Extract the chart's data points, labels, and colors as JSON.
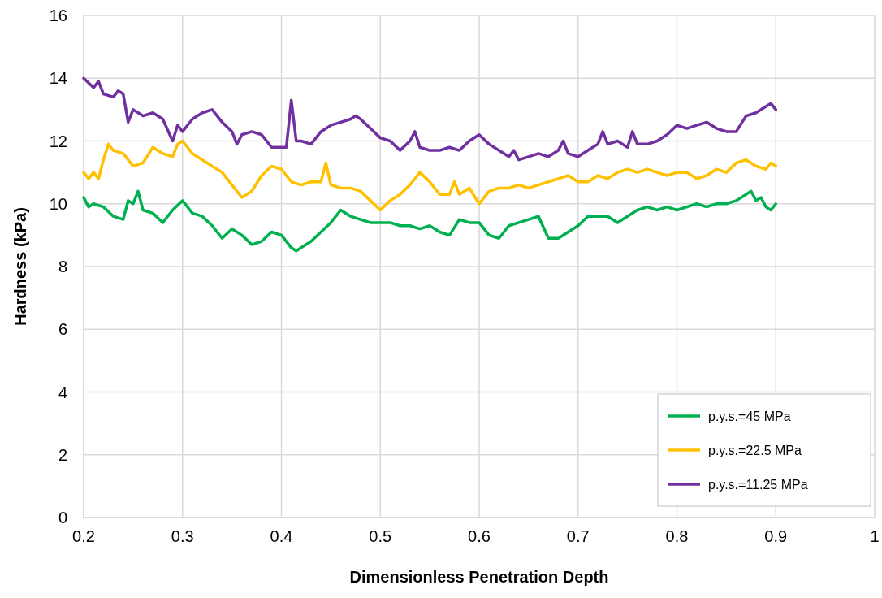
{
  "chart_data": {
    "type": "line",
    "xlabel": "Dimensionless Penetration Depth",
    "ylabel": "Hardness (kPa)",
    "xlim": [
      0.2,
      1
    ],
    "xticks": [
      0.2,
      0.3,
      0.4,
      0.5,
      0.6,
      0.7,
      0.8,
      0.9,
      1
    ],
    "ylim": [
      0,
      16
    ],
    "yticks": [
      0,
      2,
      4,
      6,
      8,
      10,
      12,
      14,
      16
    ],
    "grid": true,
    "legend": "bottom right",
    "marker": "none",
    "line_style": "solid",
    "series": [
      {
        "name": "p.y.s.=45 MPa",
        "color": "#00b050",
        "x": [
          0.2,
          0.205,
          0.21,
          0.22,
          0.23,
          0.24,
          0.245,
          0.25,
          0.255,
          0.26,
          0.27,
          0.28,
          0.29,
          0.3,
          0.31,
          0.32,
          0.33,
          0.34,
          0.35,
          0.36,
          0.37,
          0.38,
          0.39,
          0.4,
          0.41,
          0.415,
          0.42,
          0.43,
          0.44,
          0.45,
          0.46,
          0.47,
          0.48,
          0.49,
          0.5,
          0.51,
          0.52,
          0.53,
          0.54,
          0.55,
          0.56,
          0.57,
          0.58,
          0.59,
          0.6,
          0.61,
          0.62,
          0.63,
          0.64,
          0.65,
          0.66,
          0.67,
          0.68,
          0.69,
          0.7,
          0.71,
          0.72,
          0.73,
          0.74,
          0.75,
          0.76,
          0.77,
          0.78,
          0.79,
          0.8,
          0.81,
          0.82,
          0.83,
          0.84,
          0.85,
          0.86,
          0.87,
          0.875,
          0.88,
          0.885,
          0.89,
          0.895,
          0.9
        ],
        "values": [
          10.2,
          9.9,
          10.0,
          9.9,
          9.6,
          9.5,
          10.1,
          10.0,
          10.4,
          9.8,
          9.7,
          9.4,
          9.8,
          10.1,
          9.7,
          9.6,
          9.3,
          8.9,
          9.2,
          9.0,
          8.7,
          8.8,
          9.1,
          9.0,
          8.6,
          8.5,
          8.6,
          8.8,
          9.1,
          9.4,
          9.8,
          9.6,
          9.5,
          9.4,
          9.4,
          9.4,
          9.3,
          9.3,
          9.2,
          9.3,
          9.1,
          9.0,
          9.5,
          9.4,
          9.4,
          9.0,
          8.9,
          9.3,
          9.4,
          9.5,
          9.6,
          8.9,
          8.9,
          9.1,
          9.3,
          9.6,
          9.6,
          9.6,
          9.4,
          9.6,
          9.8,
          9.9,
          9.8,
          9.9,
          9.8,
          9.9,
          10.0,
          9.9,
          10.0,
          10.0,
          10.1,
          10.3,
          10.4,
          10.1,
          10.2,
          9.9,
          9.8,
          10.0
        ]
      },
      {
        "name": "p.y.s.=22.5 MPa",
        "color": "#ffc000",
        "x": [
          0.2,
          0.205,
          0.21,
          0.215,
          0.22,
          0.225,
          0.23,
          0.24,
          0.25,
          0.26,
          0.27,
          0.28,
          0.29,
          0.295,
          0.3,
          0.31,
          0.32,
          0.33,
          0.34,
          0.35,
          0.36,
          0.37,
          0.38,
          0.39,
          0.4,
          0.41,
          0.42,
          0.43,
          0.44,
          0.445,
          0.45,
          0.46,
          0.47,
          0.48,
          0.49,
          0.5,
          0.51,
          0.52,
          0.53,
          0.54,
          0.55,
          0.56,
          0.57,
          0.575,
          0.58,
          0.59,
          0.6,
          0.61,
          0.62,
          0.63,
          0.64,
          0.65,
          0.66,
          0.67,
          0.68,
          0.69,
          0.7,
          0.71,
          0.72,
          0.73,
          0.74,
          0.75,
          0.76,
          0.77,
          0.78,
          0.79,
          0.8,
          0.81,
          0.82,
          0.83,
          0.84,
          0.85,
          0.86,
          0.87,
          0.88,
          0.89,
          0.895,
          0.9
        ],
        "values": [
          11.0,
          10.8,
          11.0,
          10.8,
          11.4,
          11.9,
          11.7,
          11.6,
          11.2,
          11.3,
          11.8,
          11.6,
          11.5,
          11.9,
          12.0,
          11.6,
          11.4,
          11.2,
          11.0,
          10.6,
          10.2,
          10.4,
          10.9,
          11.2,
          11.1,
          10.7,
          10.6,
          10.7,
          10.7,
          11.3,
          10.6,
          10.5,
          10.5,
          10.4,
          10.1,
          9.8,
          10.1,
          10.3,
          10.6,
          11.0,
          10.7,
          10.3,
          10.3,
          10.7,
          10.3,
          10.5,
          10.0,
          10.4,
          10.5,
          10.5,
          10.6,
          10.5,
          10.6,
          10.7,
          10.8,
          10.9,
          10.7,
          10.7,
          10.9,
          10.8,
          11.0,
          11.1,
          11.0,
          11.1,
          11.0,
          10.9,
          11.0,
          11.0,
          10.8,
          10.9,
          11.1,
          11.0,
          11.3,
          11.4,
          11.2,
          11.1,
          11.3,
          11.2
        ]
      },
      {
        "name": "p.y.s.=11.25 MPa",
        "color": "#7030a0",
        "x": [
          0.2,
          0.21,
          0.215,
          0.22,
          0.23,
          0.235,
          0.24,
          0.245,
          0.25,
          0.26,
          0.27,
          0.28,
          0.29,
          0.295,
          0.3,
          0.31,
          0.32,
          0.33,
          0.34,
          0.35,
          0.355,
          0.36,
          0.37,
          0.38,
          0.39,
          0.4,
          0.405,
          0.41,
          0.415,
          0.42,
          0.43,
          0.44,
          0.45,
          0.46,
          0.47,
          0.475,
          0.48,
          0.49,
          0.5,
          0.51,
          0.52,
          0.53,
          0.535,
          0.54,
          0.55,
          0.56,
          0.57,
          0.58,
          0.59,
          0.6,
          0.61,
          0.62,
          0.63,
          0.635,
          0.64,
          0.65,
          0.66,
          0.67,
          0.68,
          0.685,
          0.69,
          0.7,
          0.71,
          0.72,
          0.725,
          0.73,
          0.74,
          0.75,
          0.755,
          0.76,
          0.77,
          0.78,
          0.79,
          0.8,
          0.81,
          0.82,
          0.83,
          0.84,
          0.85,
          0.86,
          0.87,
          0.88,
          0.89,
          0.895,
          0.9
        ],
        "values": [
          14.0,
          13.7,
          13.9,
          13.5,
          13.4,
          13.6,
          13.5,
          12.6,
          13.0,
          12.8,
          12.9,
          12.7,
          12.0,
          12.5,
          12.3,
          12.7,
          12.9,
          13.0,
          12.6,
          12.3,
          11.9,
          12.2,
          12.3,
          12.2,
          11.8,
          11.8,
          11.8,
          13.3,
          12.0,
          12.0,
          11.9,
          12.3,
          12.5,
          12.6,
          12.7,
          12.8,
          12.7,
          12.4,
          12.1,
          12.0,
          11.7,
          12.0,
          12.3,
          11.8,
          11.7,
          11.7,
          11.8,
          11.7,
          12.0,
          12.2,
          11.9,
          11.7,
          11.5,
          11.7,
          11.4,
          11.5,
          11.6,
          11.5,
          11.7,
          12.0,
          11.6,
          11.5,
          11.7,
          11.9,
          12.3,
          11.9,
          12.0,
          11.8,
          12.3,
          11.9,
          11.9,
          12.0,
          12.2,
          12.5,
          12.4,
          12.5,
          12.6,
          12.4,
          12.3,
          12.3,
          12.8,
          12.9,
          13.1,
          13.2,
          13.0
        ]
      }
    ]
  }
}
